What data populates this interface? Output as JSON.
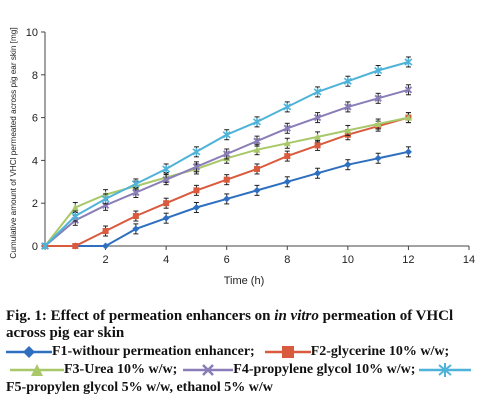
{
  "chart_data": {
    "type": "line",
    "xlabel": "Time (h)",
    "ylabel": "Cumulative amount of VHCl permeated across pig ear skin [mg]",
    "xlim": [
      0,
      14
    ],
    "ylim": [
      0,
      10
    ],
    "xticks": [
      "2",
      "4",
      "6",
      "8",
      "10",
      "12",
      "14"
    ],
    "yticks": [
      "0",
      "2",
      "4",
      "6",
      "8",
      "10"
    ],
    "grid": false,
    "legend_position": "bottom",
    "series": [
      {
        "name": "F1-withour permeation enhancer;",
        "color": "#2e6fbf",
        "marker": "diamond",
        "x": [
          0,
          1,
          2,
          3,
          4,
          5,
          6,
          7,
          8,
          9,
          10,
          11,
          12
        ],
        "y": [
          0,
          0,
          0,
          0.8,
          1.3,
          1.8,
          2.2,
          2.6,
          3.0,
          3.4,
          3.8,
          4.1,
          4.4
        ]
      },
      {
        "name": "F2-glycerine 10% w/w;",
        "color": "#d95a3d",
        "marker": "square",
        "x": [
          0,
          1,
          2,
          3,
          4,
          5,
          6,
          7,
          8,
          9,
          10,
          11,
          12
        ],
        "y": [
          0,
          0,
          0.7,
          1.4,
          2.0,
          2.6,
          3.1,
          3.6,
          4.2,
          4.7,
          5.2,
          5.6,
          6.0
        ]
      },
      {
        "name": "F3-Urea 10% w/w;",
        "color": "#a8c86a",
        "marker": "triangle",
        "x": [
          0,
          1,
          2,
          3,
          4,
          5,
          6,
          7,
          8,
          9,
          10,
          11,
          12
        ],
        "y": [
          0,
          1.8,
          2.4,
          2.8,
          3.2,
          3.6,
          4.1,
          4.5,
          4.8,
          5.1,
          5.4,
          5.7,
          6.0
        ]
      },
      {
        "name": "F4-propylene glycol 10% w/w;",
        "color": "#8a7db8",
        "marker": "x",
        "x": [
          0,
          1,
          2,
          3,
          4,
          5,
          6,
          7,
          8,
          9,
          10,
          11,
          12
        ],
        "y": [
          0,
          1.2,
          1.9,
          2.5,
          3.1,
          3.7,
          4.3,
          4.9,
          5.5,
          6.0,
          6.5,
          6.9,
          7.3
        ]
      },
      {
        "name": "F5-propylen glycol 5% w/w, ethanol 5% w/w",
        "color": "#4fb3d9",
        "marker": "asterisk",
        "x": [
          0,
          1,
          2,
          3,
          4,
          5,
          6,
          7,
          8,
          9,
          10,
          11,
          12
        ],
        "y": [
          0,
          1.4,
          2.2,
          2.9,
          3.6,
          4.4,
          5.2,
          5.8,
          6.5,
          7.2,
          7.7,
          8.2,
          8.6
        ]
      }
    ]
  },
  "caption": {
    "part1": "Fig. 1: Effect of permeation enhancers on ",
    "italic": "in vitro",
    "part2": " permeation of VHCl across pig ear skin"
  }
}
